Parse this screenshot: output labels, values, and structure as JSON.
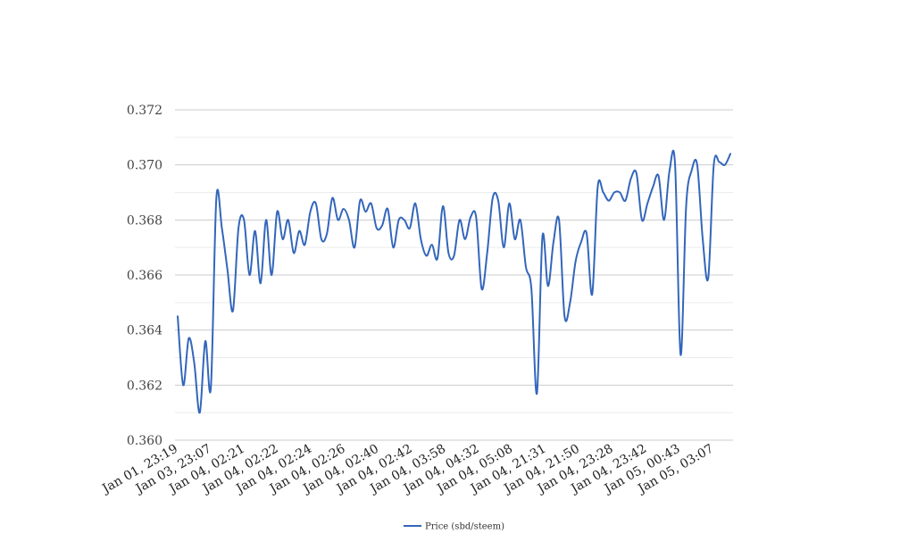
{
  "chart_data": {
    "type": "line",
    "title": "",
    "xlabel": "",
    "ylabel": "",
    "ylim": [
      0.36,
      0.372
    ],
    "y_ticks": [
      "0.360",
      "0.362",
      "0.364",
      "0.366",
      "0.368",
      "0.370",
      "0.372"
    ],
    "grid": "horizontal",
    "legend_position": "bottom",
    "x_tick_labels": [
      "Jan 01, 23:19",
      "Jan 03, 23:07",
      "Jan 04, 02:21",
      "Jan 04, 02:22",
      "Jan 04, 02:24",
      "Jan 04, 02:26",
      "Jan 04, 02:40",
      "Jan 04, 02:42",
      "Jan 04, 03:58",
      "Jan 04, 04:32",
      "Jan 04, 05:08",
      "Jan 04, 21:31",
      "Jan 04, 21:50",
      "Jan 04, 23:28",
      "Jan 04, 23:42",
      "Jan 05, 00:43",
      "Jan 05, 03:07"
    ],
    "series": [
      {
        "name": "Price (sbd/steem)",
        "color": "#3366bb",
        "values": [
          0.3645,
          0.362,
          0.3637,
          0.3628,
          0.361,
          0.3636,
          0.3619,
          0.3688,
          0.3677,
          0.3662,
          0.3647,
          0.3677,
          0.368,
          0.366,
          0.3676,
          0.3657,
          0.368,
          0.366,
          0.3683,
          0.3673,
          0.368,
          0.3668,
          0.3676,
          0.3671,
          0.3683,
          0.3686,
          0.3673,
          0.3675,
          0.3688,
          0.368,
          0.3684,
          0.368,
          0.367,
          0.3687,
          0.3683,
          0.3686,
          0.3677,
          0.3678,
          0.3684,
          0.367,
          0.368,
          0.368,
          0.3677,
          0.3686,
          0.3673,
          0.3667,
          0.3671,
          0.3666,
          0.3685,
          0.3668,
          0.3667,
          0.368,
          0.3673,
          0.3681,
          0.3681,
          0.3655,
          0.3668,
          0.3688,
          0.3687,
          0.367,
          0.3686,
          0.3673,
          0.368,
          0.3663,
          0.3655,
          0.3617,
          0.3674,
          0.3656,
          0.3672,
          0.368,
          0.3645,
          0.365,
          0.3665,
          0.3672,
          0.3675,
          0.3653,
          0.3692,
          0.369,
          0.3687,
          0.369,
          0.369,
          0.3687,
          0.3695,
          0.3697,
          0.368,
          0.3686,
          0.3692,
          0.3696,
          0.368,
          0.3698,
          0.37,
          0.3631,
          0.3685,
          0.3698,
          0.37,
          0.3673,
          0.3659,
          0.37,
          0.3701,
          0.37,
          0.3704
        ]
      }
    ]
  }
}
